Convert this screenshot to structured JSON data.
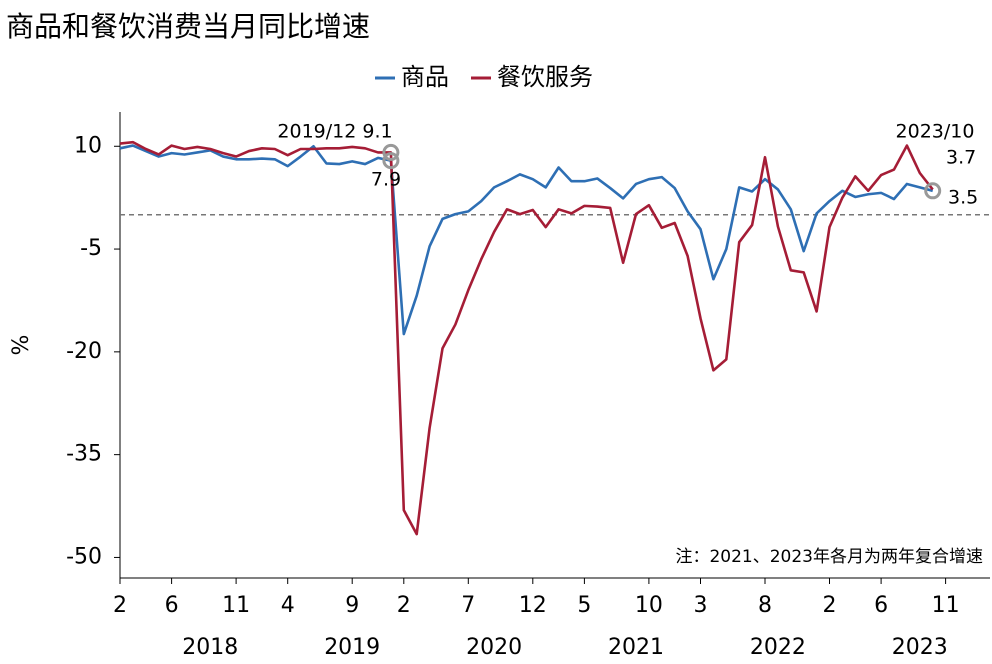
{
  "chart_data": {
    "type": "line",
    "title": "商品和餐饮消费当月同比增速",
    "y_label": "%",
    "note": "注：2021、2023年各月为两年复合增速",
    "categories": [
      "2",
      null,
      null,
      null,
      "6",
      null,
      null,
      null,
      null,
      "11",
      null,
      null,
      null,
      "4",
      null,
      null,
      null,
      null,
      "9",
      null,
      null,
      null,
      "2",
      null,
      null,
      null,
      null,
      "7",
      null,
      null,
      null,
      null,
      "12",
      null,
      null,
      null,
      "5",
      null,
      null,
      null,
      null,
      "10",
      null,
      null,
      null,
      "3",
      null,
      null,
      null,
      null,
      "8",
      null,
      null,
      null,
      null,
      "2",
      null,
      null,
      null,
      "6",
      null,
      null,
      null,
      null,
      "11"
    ],
    "years": [
      "2018",
      "2019",
      "2020",
      "2021",
      "2022",
      "2023"
    ],
    "series": [
      {
        "name": "商品",
        "color": "#2e6fb4",
        "values": [
          9.7,
          10.1,
          9.3,
          8.5,
          9.0,
          8.8,
          9.1,
          9.4,
          8.5,
          8.1,
          8.1,
          8.2,
          8.1,
          7.1,
          8.5,
          10.0,
          7.5,
          7.4,
          7.8,
          7.4,
          8.3,
          7.9,
          -17.4,
          -11.8,
          -4.6,
          -0.6,
          0.1,
          0.5,
          2.0,
          4.0,
          4.9,
          5.9,
          5.2,
          4.0,
          6.9,
          4.9,
          4.9,
          5.3,
          3.9,
          2.4,
          4.5,
          5.2,
          5.5,
          3.9,
          0.5,
          -2.1,
          -9.4,
          -5.0,
          4.0,
          3.4,
          5.2,
          3.7,
          0.8,
          -5.3,
          0.2,
          2.0,
          3.5,
          2.6,
          3.0,
          3.2,
          2.3,
          4.5,
          4.0,
          3.5,
          null
        ]
      },
      {
        "name": "餐饮服务",
        "color": "#a51d36",
        "values": [
          10.4,
          10.6,
          9.6,
          8.8,
          10.1,
          9.6,
          9.9,
          9.6,
          9.0,
          8.5,
          9.3,
          9.7,
          9.6,
          8.7,
          9.6,
          9.6,
          9.7,
          9.7,
          9.9,
          9.7,
          9.1,
          9.1,
          -43.1,
          -46.6,
          -31.1,
          -19.5,
          -16.0,
          -11.0,
          -6.5,
          -2.5,
          0.8,
          0.1,
          0.7,
          -1.8,
          0.8,
          0.2,
          1.3,
          1.2,
          1.0,
          -7.0,
          0.1,
          1.4,
          -1.9,
          -1.2,
          -6.0,
          -15.1,
          -22.7,
          -21.1,
          -4.0,
          -1.5,
          8.4,
          -1.7,
          -8.1,
          -8.4,
          -14.1,
          -1.8,
          2.5,
          5.6,
          3.5,
          5.8,
          6.6,
          10.1,
          6.1,
          3.7,
          null
        ]
      }
    ],
    "annotations": [
      "2019/12 9.1",
      "7.9",
      "2023/10",
      "3.7",
      "3.5"
    ],
    "reference_line": 0,
    "ylim": [
      -53,
      15
    ],
    "yticks": [
      10,
      -5,
      -20,
      -35,
      -50
    ],
    "legend": "top"
  }
}
